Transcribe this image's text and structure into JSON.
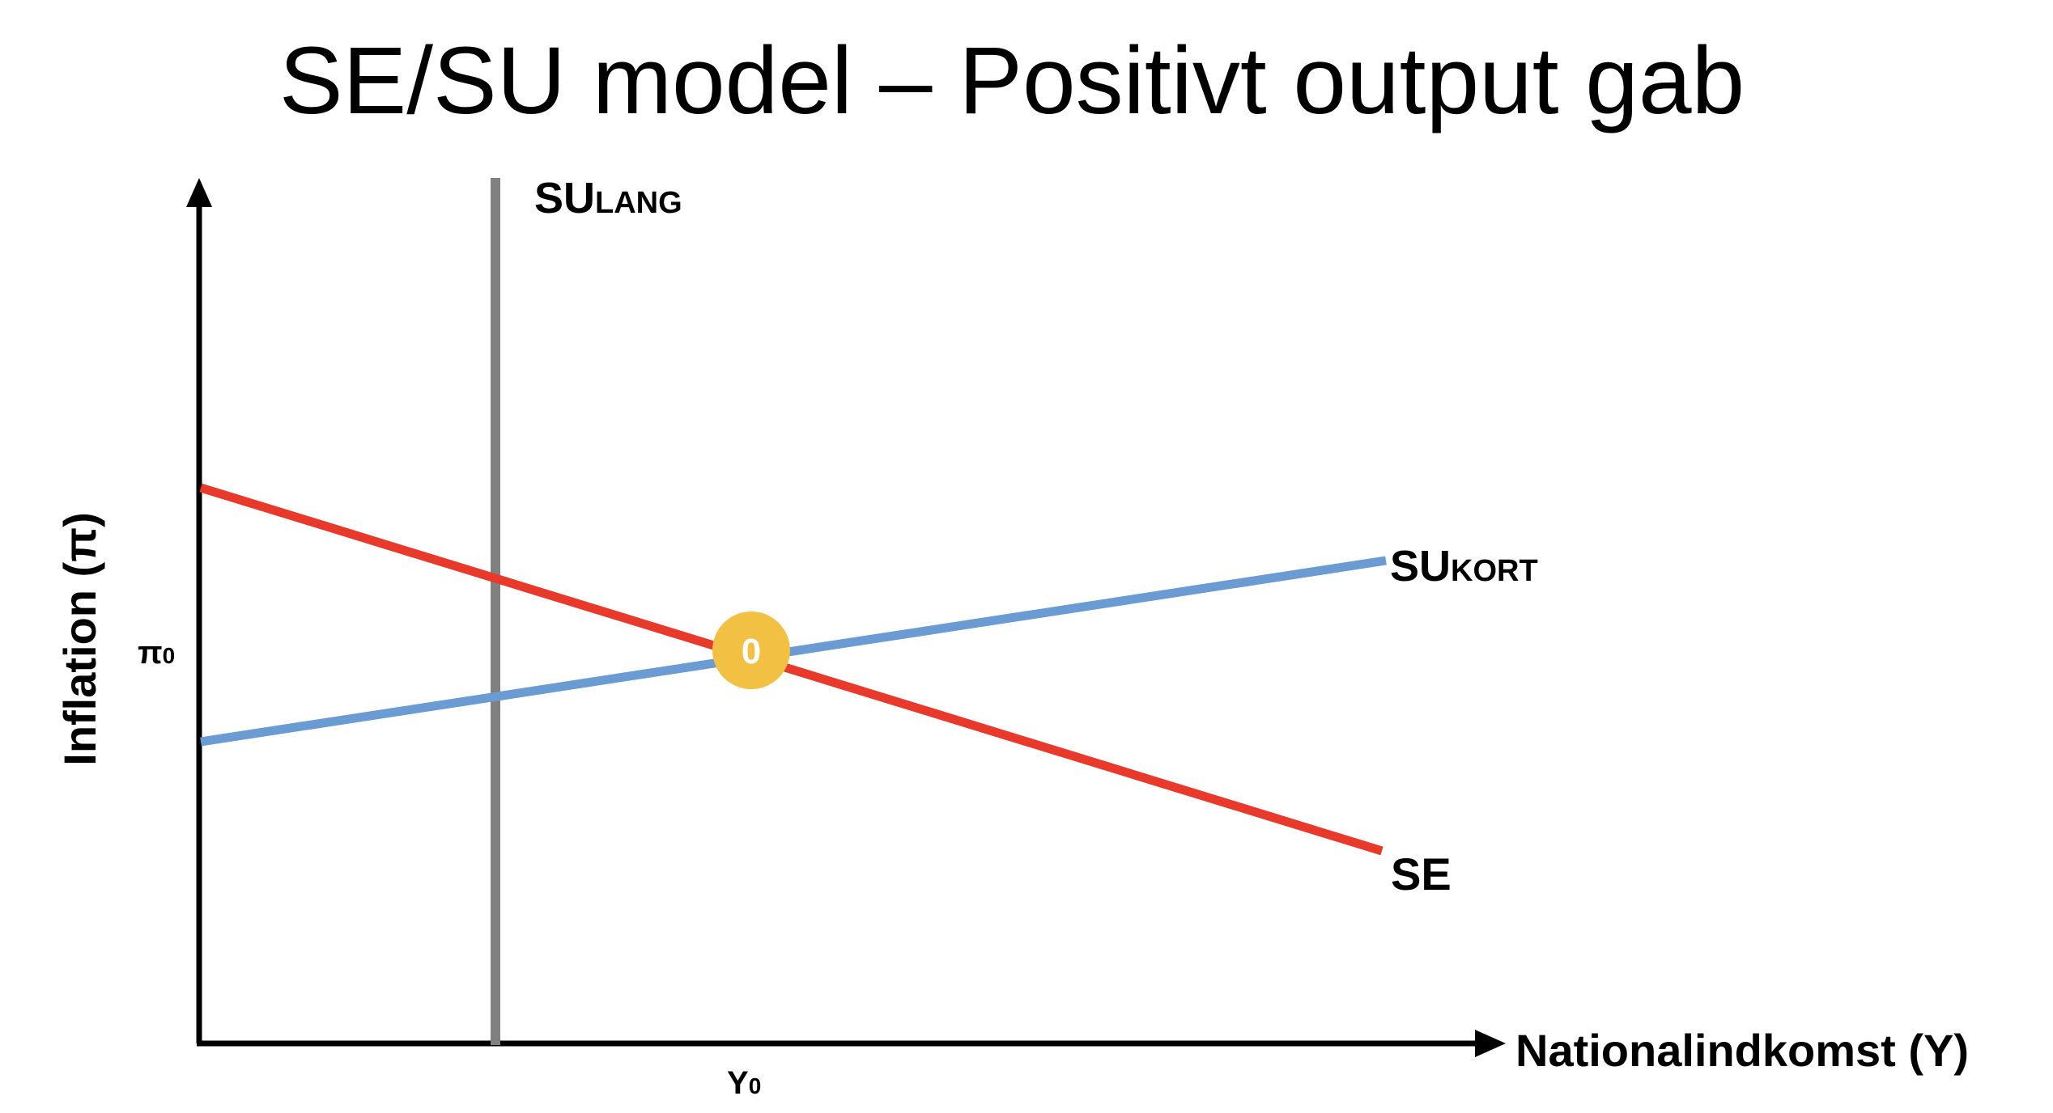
{
  "title": "SE/SU model – Positivt output gab",
  "axes": {
    "x_label": "Nationalindkomst (Y)",
    "y_label": "Inflation (π)",
    "x_tick": {
      "main": "Y",
      "sub": "0"
    },
    "y_tick": {
      "main": "π",
      "sub": "0"
    }
  },
  "curves": {
    "su_lang": {
      "main": "SU",
      "sub": "LANG",
      "color": "#808080"
    },
    "su_kort": {
      "main": "SU",
      "sub": "KORT",
      "color": "#6a9bd3"
    },
    "se": {
      "label": "SE",
      "color": "#e8392b"
    }
  },
  "equilibrium": {
    "label": "0",
    "color": "#f2c143"
  }
}
